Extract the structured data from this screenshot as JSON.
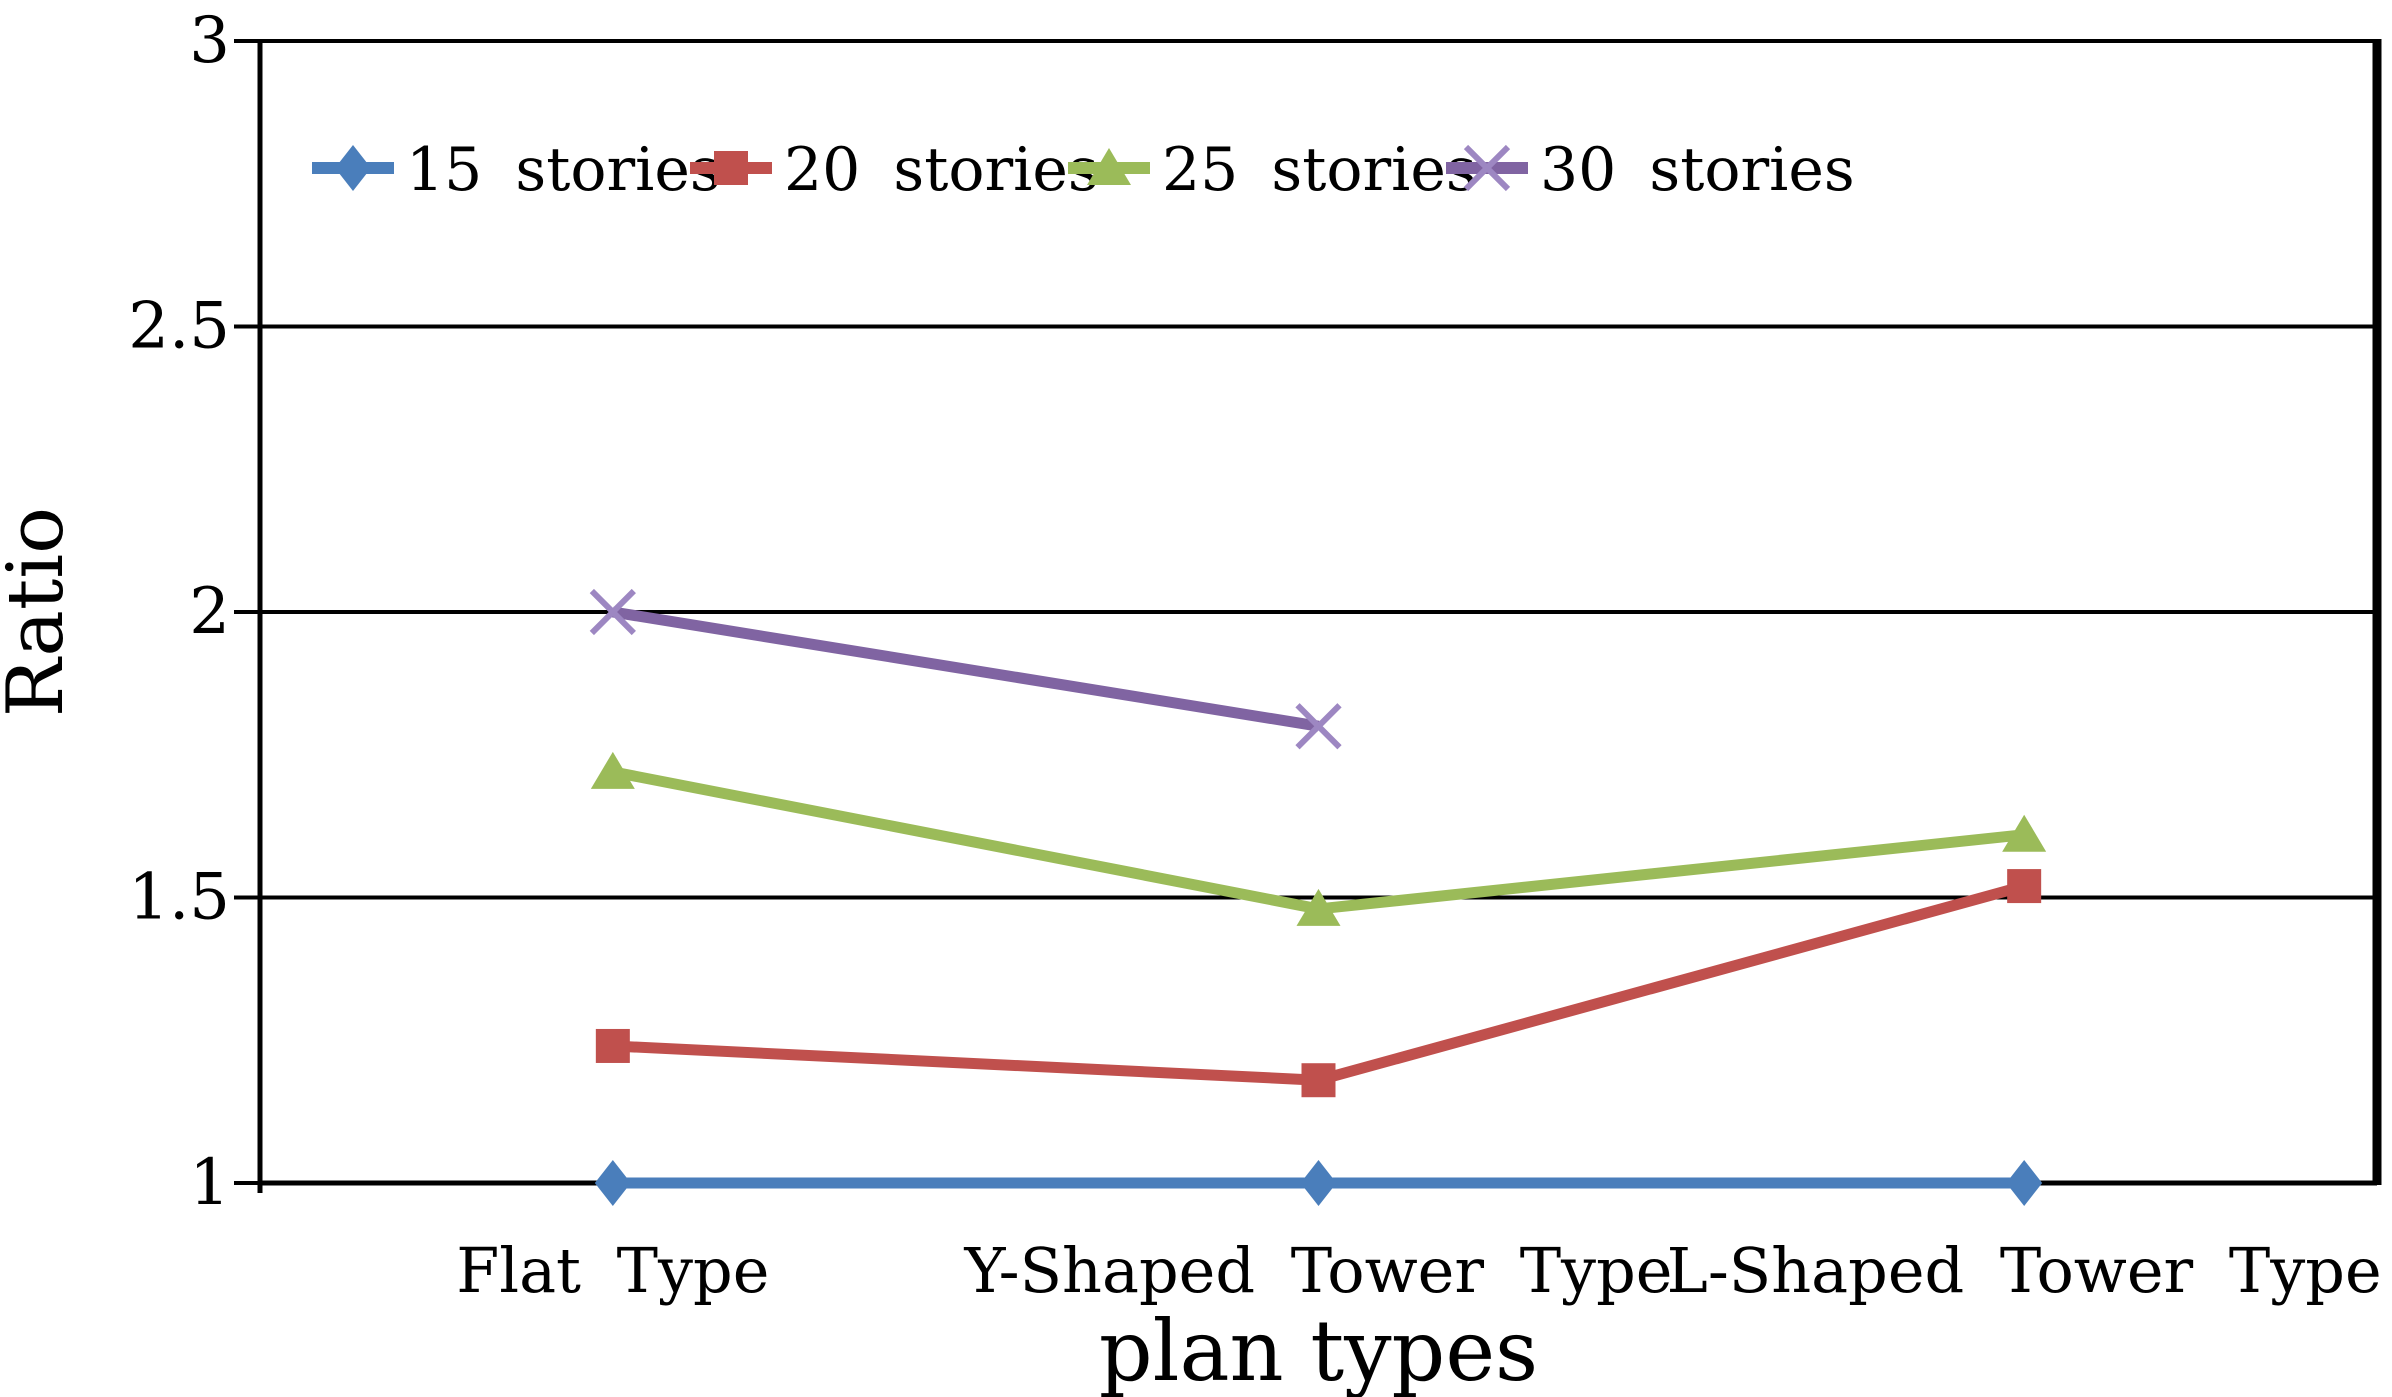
{
  "chart_data": {
    "type": "line",
    "title": "",
    "xlabel": "plan types",
    "ylabel": "Ratio",
    "categories": [
      "Flat Type",
      "Y-Shaped Tower Type",
      "L-Shaped Tower Type"
    ],
    "series": [
      {
        "name": "15 stories",
        "color": "#4a7ebb",
        "marker": "diamond",
        "values": [
          1.0,
          1.0,
          1.0
        ]
      },
      {
        "name": "20 stories",
        "color": "#c0504d",
        "marker": "square",
        "values": [
          1.24,
          1.18,
          1.52
        ]
      },
      {
        "name": "25 stories",
        "color": "#9bbb59",
        "marker": "triangle",
        "values": [
          1.72,
          1.48,
          1.61
        ]
      },
      {
        "name": "30 stories",
        "color": "#8064a2",
        "marker": "x",
        "marker_stroke": "#9d87c2",
        "values": [
          2.0,
          1.8,
          null
        ]
      }
    ],
    "y_axis": {
      "min": 1,
      "max": 3,
      "step": 0.5,
      "tick_labels": [
        "1",
        "1.5",
        "2",
        "2.5",
        "3"
      ]
    },
    "grid": true,
    "gridline_color": "#000000",
    "axis_color": "#000000",
    "legend_position": "top-inside",
    "legend_labels": [
      "15 stories",
      "20 stories",
      "25 stories",
      "30 stories"
    ],
    "background": "#ffffff"
  }
}
